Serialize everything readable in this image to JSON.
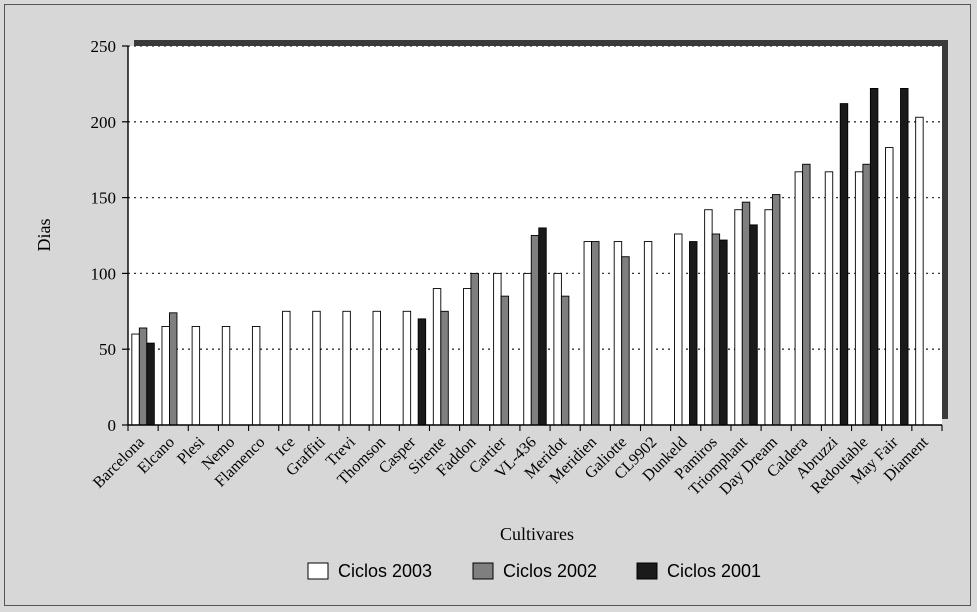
{
  "chart_data": {
    "type": "bar",
    "title": "",
    "xlabel": "Cultivares",
    "ylabel": "Dias",
    "ylim": [
      0,
      250
    ],
    "yticks": [
      0,
      50,
      100,
      150,
      200,
      250
    ],
    "grid": "horizontal dotted",
    "legend_position": "bottom",
    "categories": [
      "Barcelona",
      "Elcano",
      "Plesi",
      "Nemo",
      "Flamenco",
      "Ice",
      "Graffiti",
      "Trevi",
      "Thomson",
      "Casper",
      "Sirente",
      "Faddon",
      "Cartier",
      "VL-436",
      "Meridot",
      "Meridien",
      "Galiotte",
      "CL9902",
      "Dunkeld",
      "Pamiros",
      "Triomphant",
      "Day Dream",
      "Caldera",
      "Abruzzi",
      "Redoutable",
      "May Fair",
      "Diament"
    ],
    "series": [
      {
        "name": "Ciclos 2003",
        "color": "#ffffff",
        "values": [
          60,
          65,
          65,
          65,
          65,
          75,
          75,
          75,
          75,
          75,
          90,
          90,
          100,
          100,
          100,
          121,
          121,
          121,
          126,
          142,
          142,
          142,
          167,
          167,
          167,
          183,
          203
        ]
      },
      {
        "name": "Ciclos 2002",
        "color": "#7f7f7f",
        "values": [
          64,
          74,
          null,
          null,
          null,
          null,
          null,
          null,
          null,
          null,
          75,
          100,
          85,
          125,
          85,
          121,
          111,
          null,
          null,
          126,
          147,
          152,
          172,
          null,
          172,
          null,
          null
        ]
      },
      {
        "name": "Ciclos 2001",
        "color": "#1a1a1a",
        "values": [
          54,
          null,
          null,
          null,
          null,
          null,
          null,
          null,
          null,
          70,
          null,
          null,
          null,
          130,
          null,
          null,
          null,
          null,
          121,
          122,
          132,
          null,
          null,
          212,
          222,
          222,
          null
        ]
      }
    ]
  }
}
